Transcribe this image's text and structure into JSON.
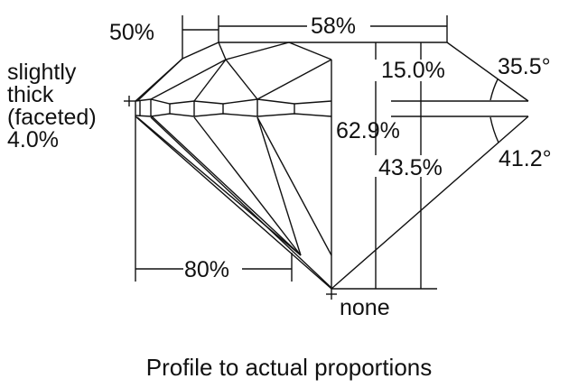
{
  "labels": {
    "girdle_line1": "slightly",
    "girdle_line2": "thick",
    "girdle_line3": "(faceted)",
    "girdle_value": "4.0%",
    "star_length": "50%",
    "table": "58%",
    "crown_height": "15.0%",
    "crown_angle": "35.5°",
    "total_depth": "62.9%",
    "pavilion_depth": "43.5%",
    "pavilion_angle": "41.2°",
    "lower_half": "80%",
    "culet": "none"
  },
  "caption": "Profile to actual proportions"
}
